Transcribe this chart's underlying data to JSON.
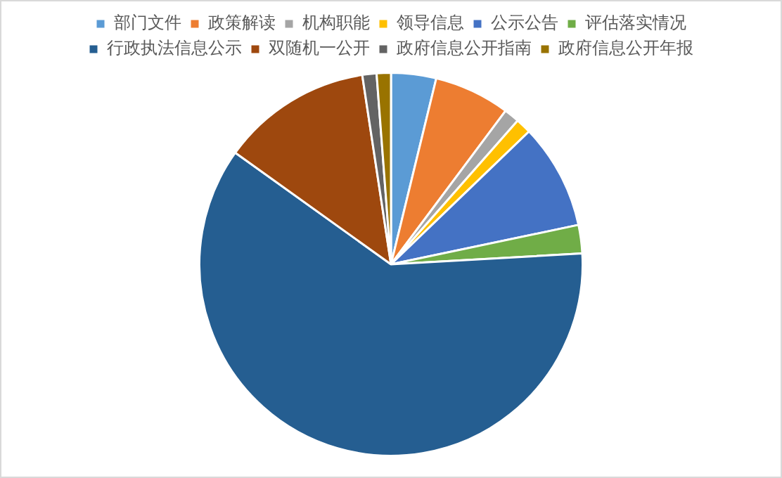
{
  "chart_data": {
    "type": "pie",
    "categories": [
      "部门文件",
      "政策解读",
      "机构职能",
      "领导信息",
      "公示公告",
      "评估落实情况",
      "行政执法信息公示",
      "双随机一公开",
      "政府信息公开指南",
      "政府信息公开年报"
    ],
    "values": [
      3.8,
      6.4,
      1.3,
      1.3,
      8.9,
      2.4,
      60.8,
      12.7,
      1.2,
      1.2
    ],
    "colors": [
      "#5b9bd5",
      "#ed7d31",
      "#a5a5a5",
      "#ffc000",
      "#4472c4",
      "#70ad47",
      "#255e91",
      "#9e480e",
      "#636363",
      "#997300"
    ],
    "legend": "top"
  }
}
